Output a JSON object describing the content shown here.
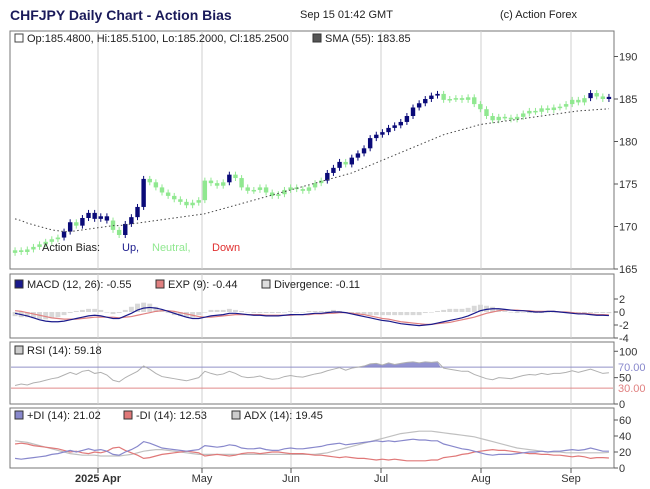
{
  "header": {
    "title": "CHFJPY Daily Chart - Action Bias",
    "datetime": "Sep 15 01:42 GMT",
    "copyright": "(c) Action Forex"
  },
  "colors": {
    "up": "#0a0a78",
    "neutral": "#90e890",
    "down": "#e03030",
    "macd": "#1a1a8c",
    "exp": "#e08080",
    "divergence": "#cccccc",
    "rsi": "#8080c8",
    "di_plus": "#8888cc",
    "di_minus": "#e07878",
    "adx": "#c0c0c0"
  },
  "chart_data": [
    {
      "type": "candlestick",
      "panel": "price",
      "legend": {
        "ohlc": "Op:185.4800, Hi:185.5100, Lo:185.2000, Cl:185.2500",
        "sma": "SMA (55): 183.85"
      },
      "bias_legend": {
        "label": "Action Bias:",
        "up": "Up,",
        "neutral": "Neutral,",
        "down": "Down"
      },
      "ylim": [
        165,
        191
      ],
      "yticks": [
        165,
        170,
        175,
        180,
        185,
        190
      ],
      "closes": [
        167.2,
        167.0,
        167.3,
        167.6,
        167.9,
        168.2,
        168.5,
        168.7,
        169.4,
        170.5,
        170.1,
        171.0,
        171.6,
        170.9,
        171.2,
        170.7,
        169.6,
        169.0,
        170.3,
        171.1,
        172.3,
        175.6,
        175.2,
        174.6,
        174.0,
        173.6,
        173.2,
        172.9,
        172.5,
        172.8,
        173.1,
        175.4,
        175.1,
        174.8,
        175.2,
        176.1,
        175.7,
        174.6,
        174.2,
        174.3,
        174.6,
        174.0,
        173.6,
        173.8,
        174.3,
        174.6,
        174.4,
        174.2,
        174.6,
        175.1,
        175.4,
        176.3,
        176.9,
        177.6,
        177.3,
        178.1,
        178.6,
        179.2,
        180.4,
        180.8,
        181.1,
        181.6,
        181.9,
        182.3,
        183.0,
        184.0,
        184.5,
        185.0,
        185.4,
        185.6,
        184.9,
        185.0,
        185.1,
        184.9,
        185.2,
        184.4,
        183.8,
        183.0,
        182.5,
        182.9,
        182.8,
        182.6,
        182.9,
        183.3,
        183.6,
        183.5,
        183.9,
        183.7,
        184.0,
        184.1,
        184.4,
        184.9,
        184.6,
        185.1,
        185.7,
        185.3,
        185.0,
        185.25
      ],
      "bias": [
        "N",
        "N",
        "N",
        "N",
        "N",
        "N",
        "N",
        "N",
        "U",
        "U",
        "N",
        "U",
        "U",
        "U",
        "U",
        "U",
        "N",
        "N",
        "U",
        "U",
        "U",
        "U",
        "N",
        "N",
        "N",
        "N",
        "N",
        "N",
        "N",
        "N",
        "N",
        "N",
        "N",
        "N",
        "N",
        "U",
        "N",
        "N",
        "N",
        "N",
        "N",
        "N",
        "N",
        "N",
        "N",
        "N",
        "N",
        "N",
        "N",
        "N",
        "N",
        "U",
        "U",
        "U",
        "N",
        "U",
        "U",
        "U",
        "U",
        "U",
        "U",
        "U",
        "U",
        "U",
        "U",
        "U",
        "U",
        "U",
        "U",
        "U",
        "N",
        "N",
        "N",
        "N",
        "N",
        "N",
        "N",
        "N",
        "N",
        "N",
        "N",
        "N",
        "N",
        "N",
        "N",
        "N",
        "N",
        "N",
        "N",
        "N",
        "N",
        "N",
        "N",
        "N",
        "U",
        "N",
        "N",
        "U"
      ],
      "sma": [
        170.9,
        170.7,
        170.4,
        170.2,
        170.0,
        169.8,
        169.6,
        169.5,
        169.4,
        169.4,
        169.5,
        169.6,
        169.7,
        169.8,
        169.9,
        170.0,
        170.1,
        170.1,
        170.2,
        170.3,
        170.4,
        170.5,
        170.6,
        170.7,
        170.8,
        170.9,
        171.0,
        171.1,
        171.2,
        171.3,
        171.4,
        171.5,
        171.7,
        171.9,
        172.1,
        172.3,
        172.5,
        172.7,
        172.9,
        173.1,
        173.3,
        173.5,
        173.7,
        173.9,
        174.1,
        174.3,
        174.5,
        174.7,
        174.9,
        175.1,
        175.3,
        175.5,
        175.7,
        175.9,
        176.1,
        176.3,
        176.6,
        176.9,
        177.2,
        177.5,
        177.8,
        178.1,
        178.4,
        178.7,
        179.0,
        179.3,
        179.6,
        179.9,
        180.2,
        180.5,
        180.8,
        181.0,
        181.2,
        181.4,
        181.6,
        181.8,
        182.0,
        182.1,
        182.2,
        182.3,
        182.4,
        182.5,
        182.6,
        182.7,
        182.8,
        182.9,
        183.0,
        183.1,
        183.2,
        183.3,
        183.4,
        183.5,
        183.6,
        183.65,
        183.7,
        183.75,
        183.8,
        183.85
      ]
    },
    {
      "type": "line",
      "panel": "macd",
      "legend": {
        "macd": "MACD (12, 26): -0.55",
        "exp": "EXP (9): -0.44",
        "div": "Divergence: -0.11"
      },
      "ylim": [
        -4,
        4
      ],
      "yticks": [
        -4,
        -2,
        0,
        2
      ],
      "macd": [
        -0.2,
        -0.4,
        -0.6,
        -0.9,
        -1.2,
        -1.4,
        -1.5,
        -1.5,
        -1.4,
        -1.2,
        -1.0,
        -0.8,
        -0.6,
        -0.5,
        -0.6,
        -0.8,
        -1.0,
        -1.0,
        -0.6,
        -0.2,
        0.3,
        0.6,
        0.7,
        0.6,
        0.4,
        0.1,
        -0.2,
        -0.5,
        -0.8,
        -1.0,
        -1.0,
        -0.8,
        -0.6,
        -0.5,
        -0.4,
        -0.2,
        -0.2,
        -0.3,
        -0.4,
        -0.5,
        -0.5,
        -0.6,
        -0.6,
        -0.6,
        -0.5,
        -0.4,
        -0.4,
        -0.4,
        -0.3,
        -0.2,
        -0.2,
        -0.1,
        0.0,
        0.0,
        -0.1,
        -0.3,
        -0.5,
        -0.7,
        -0.9,
        -1.1,
        -1.3,
        -1.4,
        -1.6,
        -1.8,
        -1.9,
        -2.0,
        -2.1,
        -2.0,
        -1.9,
        -1.7,
        -1.5,
        -1.3,
        -1.1,
        -0.9,
        -0.6,
        -0.2,
        0.2,
        0.4,
        0.5,
        0.5,
        0.4,
        0.3,
        0.2,
        0.2,
        0.1,
        0.0,
        0.0,
        0.1,
        0.1,
        0.0,
        -0.1,
        -0.2,
        -0.3,
        -0.3,
        -0.4,
        -0.5,
        -0.5,
        -0.55
      ],
      "exp": [
        0.2,
        0.1,
        -0.1,
        -0.3,
        -0.5,
        -0.7,
        -0.9,
        -1.0,
        -1.1,
        -1.1,
        -1.1,
        -1.0,
        -0.9,
        -0.8,
        -0.8,
        -0.8,
        -0.8,
        -0.9,
        -0.8,
        -0.7,
        -0.5,
        -0.3,
        -0.1,
        0.1,
        0.2,
        0.2,
        0.1,
        -0.1,
        -0.3,
        -0.5,
        -0.7,
        -0.8,
        -0.8,
        -0.7,
        -0.6,
        -0.5,
        -0.4,
        -0.4,
        -0.4,
        -0.4,
        -0.4,
        -0.5,
        -0.5,
        -0.5,
        -0.5,
        -0.5,
        -0.4,
        -0.4,
        -0.4,
        -0.3,
        -0.3,
        -0.2,
        -0.2,
        -0.1,
        -0.1,
        -0.2,
        -0.3,
        -0.4,
        -0.6,
        -0.8,
        -1.0,
        -1.1,
        -1.3,
        -1.5,
        -1.6,
        -1.7,
        -1.8,
        -1.9,
        -1.9,
        -1.8,
        -1.7,
        -1.6,
        -1.4,
        -1.2,
        -1.0,
        -0.8,
        -0.5,
        -0.2,
        0.0,
        0.2,
        0.3,
        0.3,
        0.3,
        0.2,
        0.2,
        0.1,
        0.1,
        0.1,
        0.1,
        0.0,
        0.0,
        -0.1,
        -0.2,
        -0.2,
        -0.3,
        -0.4,
        -0.4,
        -0.44
      ]
    },
    {
      "type": "area",
      "panel": "rsi",
      "legend": {
        "rsi": "RSI (14): 59.18"
      },
      "ylim": [
        0,
        100
      ],
      "yticks": [
        0,
        50,
        100
      ],
      "levels": [
        "70.00",
        "30.00"
      ],
      "values": [
        35,
        38,
        36,
        40,
        42,
        45,
        48,
        50,
        55,
        60,
        56,
        62,
        64,
        58,
        60,
        55,
        45,
        42,
        50,
        56,
        62,
        72,
        66,
        58,
        52,
        50,
        48,
        46,
        44,
        47,
        50,
        62,
        58,
        55,
        57,
        62,
        58,
        52,
        50,
        51,
        53,
        49,
        47,
        48,
        52,
        54,
        52,
        51,
        54,
        57,
        59,
        63,
        66,
        69,
        64,
        68,
        70,
        72,
        76,
        77,
        74,
        78,
        75,
        77,
        79,
        80,
        78,
        80,
        79,
        80,
        68,
        66,
        64,
        62,
        62,
        56,
        52,
        48,
        46,
        50,
        49,
        48,
        51,
        54,
        56,
        55,
        58,
        56,
        58,
        58,
        60,
        63,
        60,
        63,
        66,
        62,
        58,
        59.18
      ]
    },
    {
      "type": "line",
      "panel": "dmi",
      "legend": {
        "plus": "+DI (14): 21.02",
        "minus": "-DI (14): 12.53",
        "adx": "ADX (14): 19.45"
      },
      "ylim": [
        0,
        65
      ],
      "yticks": [
        0,
        20,
        40,
        60
      ],
      "di_plus": [
        12,
        11,
        12,
        13,
        14,
        15,
        17,
        18,
        20,
        22,
        20,
        22,
        24,
        22,
        23,
        21,
        17,
        16,
        20,
        23,
        27,
        33,
        31,
        28,
        25,
        24,
        23,
        22,
        21,
        22,
        23,
        28,
        27,
        26,
        27,
        29,
        28,
        25,
        24,
        24,
        25,
        23,
        22,
        22,
        24,
        25,
        24,
        24,
        25,
        26,
        27,
        29,
        30,
        31,
        29,
        30,
        31,
        32,
        33,
        34,
        33,
        34,
        33,
        34,
        35,
        36,
        35,
        35,
        34,
        34,
        30,
        28,
        26,
        24,
        23,
        21,
        19,
        17,
        16,
        17,
        17,
        17,
        18,
        19,
        20,
        20,
        21,
        20,
        21,
        21,
        22,
        23,
        22,
        23,
        25,
        23,
        21,
        21.02
      ],
      "di_minus": [
        30,
        31,
        30,
        28,
        27,
        26,
        25,
        24,
        22,
        20,
        21,
        19,
        18,
        20,
        19,
        21,
        25,
        26,
        22,
        19,
        16,
        12,
        13,
        15,
        17,
        18,
        19,
        20,
        21,
        20,
        19,
        15,
        16,
        17,
        16,
        15,
        16,
        18,
        19,
        19,
        18,
        19,
        20,
        20,
        19,
        18,
        18,
        18,
        17,
        16,
        16,
        15,
        14,
        13,
        14,
        13,
        12,
        12,
        11,
        10,
        11,
        10,
        11,
        10,
        9,
        9,
        9,
        9,
        10,
        10,
        13,
        14,
        15,
        17,
        18,
        20,
        21,
        22,
        23,
        22,
        22,
        21,
        20,
        19,
        18,
        18,
        17,
        17,
        16,
        16,
        15,
        14,
        15,
        14,
        12,
        13,
        13,
        12.53
      ],
      "adx": [
        34,
        33,
        32,
        30,
        28,
        26,
        24,
        22,
        20,
        18,
        17,
        16,
        16,
        16,
        15,
        15,
        15,
        15,
        16,
        17,
        19,
        21,
        22,
        23,
        23,
        22,
        21,
        20,
        19,
        18,
        17,
        17,
        17,
        17,
        17,
        17,
        17,
        17,
        17,
        17,
        17,
        17,
        17,
        17,
        17,
        17,
        17,
        17,
        17,
        17,
        18,
        19,
        21,
        23,
        25,
        27,
        29,
        31,
        33,
        35,
        37,
        39,
        41,
        43,
        44,
        45,
        46,
        46,
        46,
        45,
        44,
        43,
        42,
        41,
        40,
        39,
        37,
        35,
        33,
        31,
        29,
        27,
        25,
        24,
        23,
        22,
        21,
        20,
        20,
        20,
        19,
        19,
        19,
        19,
        19,
        19,
        19,
        19.45
      ]
    }
  ],
  "x_axis": {
    "labels": [
      "2025 Apr",
      "May",
      "Jun",
      "Jul",
      "Aug",
      "Sep"
    ]
  }
}
